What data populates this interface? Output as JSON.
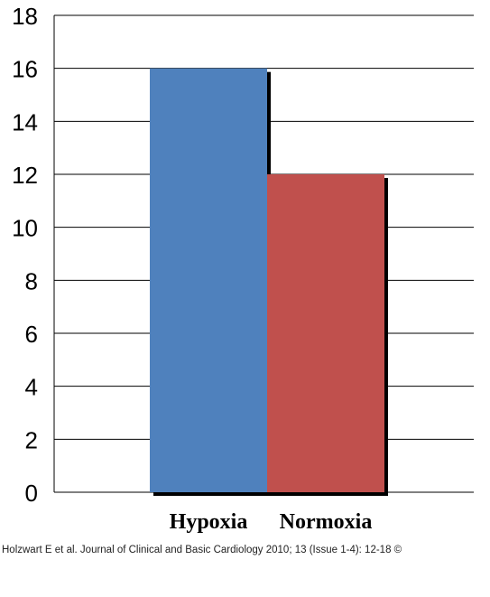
{
  "chart_data": {
    "type": "bar",
    "categories": [
      "Hypoxia",
      "Normoxia"
    ],
    "values": [
      16,
      12
    ],
    "colors": [
      "#4F81BD",
      "#C0504D"
    ],
    "ylim": [
      0,
      18
    ],
    "yticks": [
      "0",
      "2",
      "4",
      "6",
      "8",
      "10",
      "12",
      "14",
      "16",
      "18"
    ],
    "title": "",
    "xlabel": "",
    "ylabel": "",
    "grid": true
  },
  "citation": "Holzwart E et al. Journal of Clinical and Basic Cardiology 2010; 13 (Issue 1-4): 12-18 ©"
}
